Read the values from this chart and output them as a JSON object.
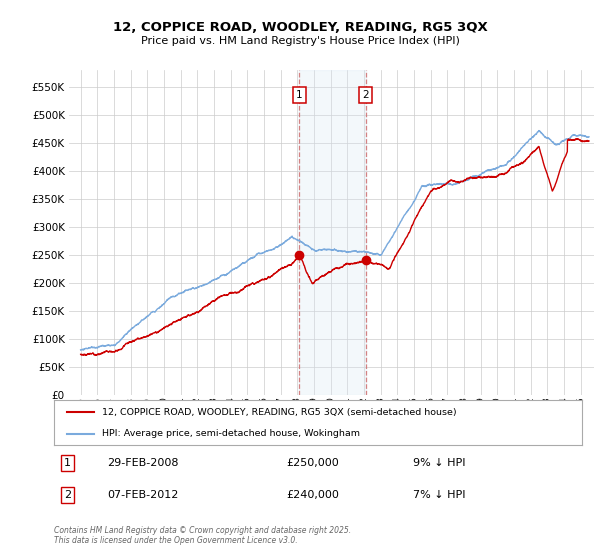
{
  "title": "12, COPPICE ROAD, WOODLEY, READING, RG5 3QX",
  "subtitle": "Price paid vs. HM Land Registry's House Price Index (HPI)",
  "legend_line1": "12, COPPICE ROAD, WOODLEY, READING, RG5 3QX (semi-detached house)",
  "legend_line2": "HPI: Average price, semi-detached house, Wokingham",
  "transaction1_date": "29-FEB-2008",
  "transaction1_price": "£250,000",
  "transaction1_hpi": "9% ↓ HPI",
  "transaction2_date": "07-FEB-2012",
  "transaction2_price": "£240,000",
  "transaction2_hpi": "7% ↓ HPI",
  "transaction1_year": 2008.12,
  "transaction2_year": 2012.1,
  "transaction1_price_val": 250000,
  "transaction2_price_val": 240000,
  "hpi_color": "#7aaadd",
  "price_color": "#cc0000",
  "shade_color": "#d8e8f5",
  "dashed_color": "#cc6666",
  "background_color": "#ffffff",
  "grid_color": "#cccccc",
  "ylim": [
    0,
    580000
  ],
  "yticks": [
    0,
    50000,
    100000,
    150000,
    200000,
    250000,
    300000,
    350000,
    400000,
    450000,
    500000,
    550000
  ],
  "footnote_line1": "Contains HM Land Registry data © Crown copyright and database right 2025.",
  "footnote_line2": "This data is licensed under the Open Government Licence v3.0."
}
